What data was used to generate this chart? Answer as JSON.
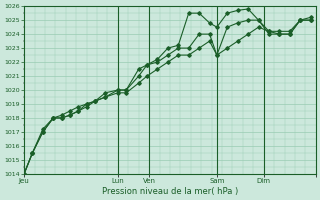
{
  "bg_color": "#cce8dc",
  "grid_color": "#99ccb3",
  "line_color": "#1a5e28",
  "marker_color": "#1a5e28",
  "title": "Pression niveau de la mer( hPa )",
  "ylim": [
    1014,
    1026
  ],
  "yticks": [
    1014,
    1015,
    1016,
    1017,
    1018,
    1019,
    1020,
    1021,
    1022,
    1023,
    1024,
    1025,
    1026
  ],
  "xlim": [
    0,
    280
  ],
  "xtick_positions": [
    0,
    90,
    120,
    185,
    230,
    280
  ],
  "xtick_labels": [
    "Jeu",
    "Lun",
    "Ven",
    "Sam",
    "Dim",
    ""
  ],
  "vline_positions": [
    90,
    120,
    185,
    230
  ],
  "series1": [
    [
      0,
      1014.0
    ],
    [
      8,
      1015.5
    ],
    [
      18,
      1017.2
    ],
    [
      28,
      1018.0
    ],
    [
      36,
      1018.0
    ],
    [
      44,
      1018.2
    ],
    [
      52,
      1018.5
    ],
    [
      60,
      1019.0
    ],
    [
      68,
      1019.2
    ],
    [
      78,
      1019.5
    ],
    [
      90,
      1020.0
    ],
    [
      98,
      1020.0
    ],
    [
      110,
      1021.5
    ],
    [
      118,
      1021.8
    ],
    [
      128,
      1022.2
    ],
    [
      138,
      1023.0
    ],
    [
      148,
      1023.2
    ],
    [
      158,
      1025.5
    ],
    [
      168,
      1025.5
    ],
    [
      178,
      1024.8
    ],
    [
      185,
      1024.5
    ],
    [
      195,
      1025.5
    ],
    [
      205,
      1025.7
    ],
    [
      215,
      1025.8
    ],
    [
      225,
      1025.0
    ],
    [
      235,
      1024.0
    ],
    [
      245,
      1024.0
    ],
    [
      255,
      1024.0
    ],
    [
      265,
      1025.0
    ],
    [
      275,
      1025.2
    ]
  ],
  "series2": [
    [
      0,
      1014.0
    ],
    [
      8,
      1015.5
    ],
    [
      18,
      1017.0
    ],
    [
      28,
      1018.0
    ],
    [
      36,
      1018.2
    ],
    [
      44,
      1018.5
    ],
    [
      52,
      1018.8
    ],
    [
      60,
      1019.0
    ],
    [
      68,
      1019.2
    ],
    [
      78,
      1019.8
    ],
    [
      90,
      1020.0
    ],
    [
      98,
      1020.0
    ],
    [
      110,
      1021.0
    ],
    [
      118,
      1021.8
    ],
    [
      128,
      1022.0
    ],
    [
      138,
      1022.5
    ],
    [
      148,
      1023.0
    ],
    [
      158,
      1023.0
    ],
    [
      168,
      1024.0
    ],
    [
      178,
      1024.0
    ],
    [
      185,
      1022.5
    ],
    [
      195,
      1024.5
    ],
    [
      205,
      1024.8
    ],
    [
      215,
      1025.0
    ],
    [
      225,
      1025.0
    ],
    [
      235,
      1024.2
    ],
    [
      245,
      1024.0
    ],
    [
      255,
      1024.0
    ],
    [
      265,
      1025.0
    ],
    [
      275,
      1025.0
    ]
  ],
  "series3": [
    [
      0,
      1014.0
    ],
    [
      8,
      1015.5
    ],
    [
      18,
      1017.0
    ],
    [
      28,
      1018.0
    ],
    [
      36,
      1018.0
    ],
    [
      44,
      1018.2
    ],
    [
      52,
      1018.5
    ],
    [
      60,
      1018.8
    ],
    [
      68,
      1019.2
    ],
    [
      78,
      1019.5
    ],
    [
      90,
      1019.8
    ],
    [
      98,
      1019.8
    ],
    [
      110,
      1020.5
    ],
    [
      118,
      1021.0
    ],
    [
      128,
      1021.5
    ],
    [
      138,
      1022.0
    ],
    [
      148,
      1022.5
    ],
    [
      158,
      1022.5
    ],
    [
      168,
      1023.0
    ],
    [
      178,
      1023.5
    ],
    [
      185,
      1022.5
    ],
    [
      195,
      1023.0
    ],
    [
      205,
      1023.5
    ],
    [
      215,
      1024.0
    ],
    [
      225,
      1024.5
    ],
    [
      235,
      1024.2
    ],
    [
      245,
      1024.2
    ],
    [
      255,
      1024.2
    ],
    [
      265,
      1025.0
    ],
    [
      275,
      1025.0
    ]
  ]
}
